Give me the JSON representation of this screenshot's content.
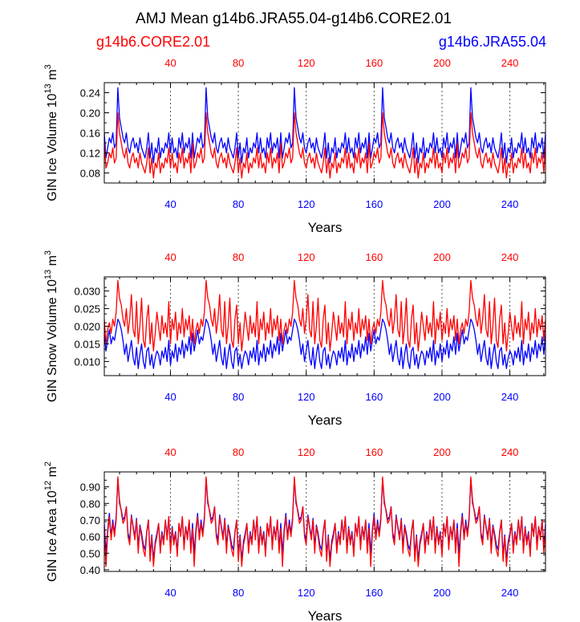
{
  "title": "AMJ Mean g14b6.JRA55.04-g14b6.CORE2.01",
  "legend": {
    "left": {
      "text": "g14b6.CORE2.01",
      "color": "#ff0000"
    },
    "right": {
      "text": "g14b6.JRA55.04",
      "color": "#0000ff"
    }
  },
  "colors": {
    "core": "#ff0000",
    "jra": "#0000ff",
    "axis": "#000000"
  },
  "chart_data": [
    {
      "type": "line",
      "ylabel": "GIN Ice Volume",
      "yunit": {
        "base": "10",
        "exp": "13",
        "unit": "m",
        "unit_exp": "3"
      },
      "xlabel": "Years",
      "xlim": [
        1,
        261
      ],
      "ylim": [
        0.06,
        0.26
      ],
      "yticks": [
        0.08,
        0.12,
        0.16,
        0.2,
        0.24
      ],
      "ytick_labels": [
        "0.08",
        "0.12",
        "0.16",
        "0.20",
        "0.24"
      ],
      "xticks": [
        40,
        80,
        120,
        160,
        200,
        240
      ],
      "xtick_labels": [
        "40",
        "80",
        "120",
        "160",
        "200",
        "240"
      ],
      "grid_x": true,
      "cycle_years": 52,
      "series": [
        {
          "name": "g14b6.CORE2.01",
          "color": "#ff0000",
          "cycle": [
            0.14,
            0.09,
            0.1,
            0.12,
            0.11,
            0.13,
            0.1,
            0.11,
            0.2,
            0.16,
            0.14,
            0.12,
            0.11,
            0.13,
            0.1,
            0.09,
            0.11,
            0.12,
            0.1,
            0.11,
            0.09,
            0.12,
            0.1,
            0.09,
            0.08,
            0.1,
            0.13,
            0.08,
            0.11,
            0.07,
            0.1,
            0.09,
            0.12,
            0.08,
            0.1,
            0.09,
            0.11,
            0.1,
            0.13,
            0.09,
            0.12,
            0.09,
            0.1,
            0.08,
            0.12,
            0.1,
            0.13,
            0.09,
            0.11,
            0.1,
            0.12,
            0.08
          ]
        },
        {
          "name": "g14b6.JRA55.04",
          "color": "#0000ff",
          "cycle": [
            0.16,
            0.11,
            0.13,
            0.15,
            0.14,
            0.16,
            0.13,
            0.14,
            0.25,
            0.19,
            0.17,
            0.15,
            0.14,
            0.16,
            0.13,
            0.12,
            0.14,
            0.15,
            0.13,
            0.14,
            0.12,
            0.15,
            0.13,
            0.12,
            0.11,
            0.13,
            0.16,
            0.11,
            0.14,
            0.1,
            0.13,
            0.12,
            0.15,
            0.11,
            0.13,
            0.12,
            0.14,
            0.13,
            0.16,
            0.12,
            0.15,
            0.12,
            0.13,
            0.11,
            0.15,
            0.13,
            0.16,
            0.12,
            0.14,
            0.13,
            0.15,
            0.11
          ]
        }
      ]
    },
    {
      "type": "line",
      "ylabel": "GIN Snow Volume",
      "yunit": {
        "base": "10",
        "exp": "13",
        "unit": "m",
        "unit_exp": "3"
      },
      "xlabel": "Years",
      "xlim": [
        1,
        261
      ],
      "ylim": [
        0.006,
        0.034
      ],
      "yticks": [
        0.01,
        0.015,
        0.02,
        0.025,
        0.03
      ],
      "ytick_labels": [
        "0.010",
        "0.015",
        "0.020",
        "0.025",
        "0.030"
      ],
      "xticks": [
        40,
        80,
        120,
        160,
        200,
        240
      ],
      "xtick_labels": [
        "40",
        "80",
        "120",
        "160",
        "200",
        "240"
      ],
      "grid_x": true,
      "cycle_years": 52,
      "series": [
        {
          "name": "g14b6.CORE2.01",
          "color": "#ff0000",
          "cycle": [
            0.022,
            0.015,
            0.019,
            0.021,
            0.018,
            0.022,
            0.02,
            0.024,
            0.033,
            0.028,
            0.026,
            0.022,
            0.02,
            0.025,
            0.018,
            0.022,
            0.029,
            0.019,
            0.017,
            0.027,
            0.015,
            0.02,
            0.028,
            0.016,
            0.014,
            0.022,
            0.026,
            0.015,
            0.021,
            0.013,
            0.018,
            0.024,
            0.02,
            0.016,
            0.023,
            0.018,
            0.021,
            0.017,
            0.027,
            0.015,
            0.022,
            0.019,
            0.024,
            0.016,
            0.021,
            0.018,
            0.025,
            0.017,
            0.022,
            0.019,
            0.023,
            0.016
          ]
        },
        {
          "name": "g14b6.JRA55.04",
          "color": "#0000ff",
          "cycle": [
            0.018,
            0.013,
            0.016,
            0.019,
            0.015,
            0.017,
            0.016,
            0.019,
            0.022,
            0.021,
            0.019,
            0.016,
            0.012,
            0.015,
            0.01,
            0.013,
            0.016,
            0.011,
            0.009,
            0.014,
            0.008,
            0.012,
            0.015,
            0.01,
            0.008,
            0.013,
            0.014,
            0.009,
            0.012,
            0.008,
            0.011,
            0.013,
            0.012,
            0.009,
            0.013,
            0.011,
            0.014,
            0.01,
            0.016,
            0.009,
            0.013,
            0.011,
            0.015,
            0.01,
            0.014,
            0.012,
            0.016,
            0.011,
            0.015,
            0.013,
            0.017,
            0.012
          ]
        }
      ]
    },
    {
      "type": "line",
      "ylabel": "GIN Ice Area",
      "yunit": {
        "base": "10",
        "exp": "12",
        "unit": "m",
        "unit_exp": "2"
      },
      "xlabel": "Years",
      "xlim": [
        1,
        261
      ],
      "ylim": [
        0.39,
        0.99
      ],
      "yticks": [
        0.4,
        0.5,
        0.6,
        0.7,
        0.8,
        0.9
      ],
      "ytick_labels": [
        "0.40",
        "0.50",
        "0.60",
        "0.70",
        "0.80",
        "0.90"
      ],
      "xticks": [
        40,
        80,
        120,
        160,
        200,
        240
      ],
      "xtick_labels": [
        "40",
        "80",
        "120",
        "160",
        "200",
        "240"
      ],
      "grid_x": true,
      "cycle_years": 52,
      "series": [
        {
          "name": "g14b6.CORE2.01",
          "color": "#ff0000",
          "cycle": [
            0.65,
            0.42,
            0.62,
            0.72,
            0.58,
            0.68,
            0.6,
            0.7,
            0.96,
            0.82,
            0.75,
            0.68,
            0.7,
            0.78,
            0.6,
            0.55,
            0.72,
            0.65,
            0.58,
            0.7,
            0.5,
            0.66,
            0.6,
            0.52,
            0.48,
            0.62,
            0.7,
            0.45,
            0.6,
            0.42,
            0.55,
            0.6,
            0.68,
            0.5,
            0.62,
            0.55,
            0.7,
            0.58,
            0.72,
            0.5,
            0.65,
            0.55,
            0.62,
            0.48,
            0.68,
            0.6,
            0.72,
            0.52,
            0.66,
            0.58,
            0.7,
            0.5
          ]
        },
        {
          "name": "g14b6.JRA55.04",
          "color": "#0000ff",
          "cycle": [
            0.68,
            0.5,
            0.64,
            0.74,
            0.6,
            0.7,
            0.62,
            0.72,
            0.95,
            0.8,
            0.76,
            0.7,
            0.72,
            0.78,
            0.62,
            0.58,
            0.73,
            0.66,
            0.6,
            0.71,
            0.54,
            0.67,
            0.62,
            0.55,
            0.52,
            0.63,
            0.7,
            0.49,
            0.61,
            0.46,
            0.57,
            0.62,
            0.68,
            0.53,
            0.63,
            0.57,
            0.7,
            0.6,
            0.72,
            0.53,
            0.66,
            0.57,
            0.63,
            0.51,
            0.68,
            0.61,
            0.72,
            0.55,
            0.66,
            0.6,
            0.7,
            0.53
          ]
        }
      ]
    }
  ]
}
